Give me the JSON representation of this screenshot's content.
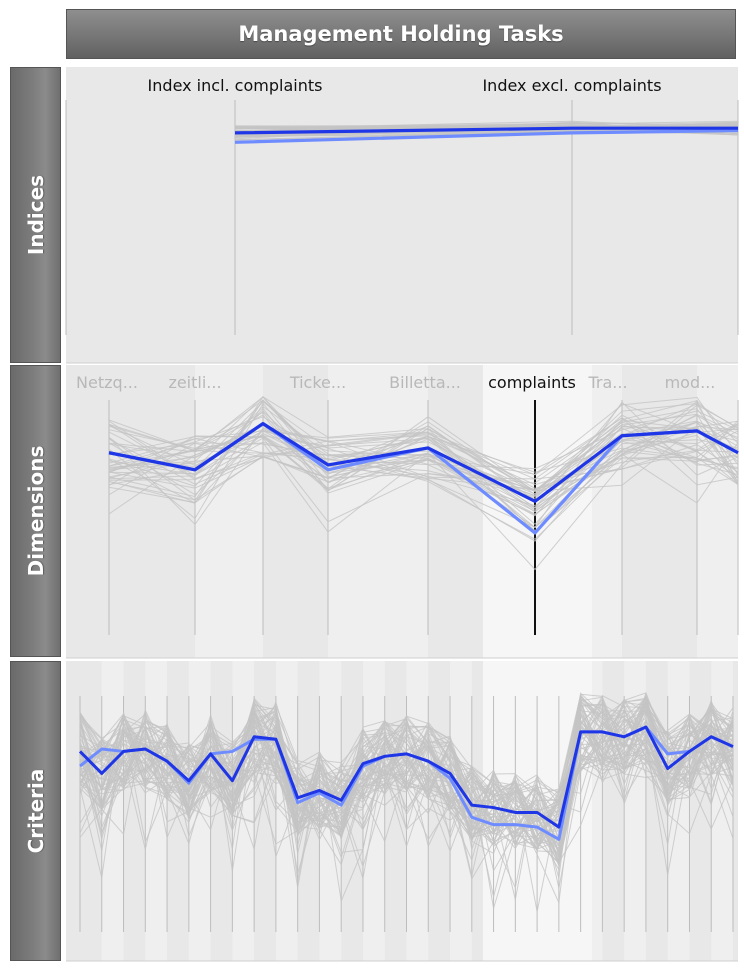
{
  "header": {
    "title": "Management Holding Tasks"
  },
  "panels": {
    "indices": "Indices",
    "dimensions": "Dimensions",
    "criteria": "Criteria"
  },
  "colors": {
    "highlight_dark": "#1f36e6",
    "highlight_light": "#6e8cff",
    "background_lines": "#c4c4c4",
    "panel_bg": "#e8e8e8",
    "selected_column": "#f6f6f6"
  },
  "chart_data": [
    {
      "type": "line",
      "title": "Indices",
      "axes": [
        "",
        "Index incl. complaints",
        "Index excl. complaints",
        ""
      ],
      "ylim": [
        0,
        100
      ],
      "series": [
        {
          "values": [
            null,
            86,
            88,
            88
          ]
        },
        {
          "values": [
            null,
            82,
            86,
            87
          ]
        }
      ]
    },
    {
      "type": "line",
      "title": "Dimensions",
      "axes": [
        "Netzq...",
        "zeitli...",
        "",
        "Ticke...",
        "Billetta...",
        "complaints",
        "Tra...",
        "mod...",
        ""
      ],
      "selected_axis": "complaints",
      "ylim": [
        0,
        100
      ],
      "series": [
        {
          "values": [
            75,
            68,
            87,
            70,
            77,
            55,
            82,
            84,
            75
          ]
        },
        {
          "values": [
            75,
            68,
            87,
            68,
            77,
            42,
            82,
            84,
            75
          ]
        }
      ]
    },
    {
      "type": "line",
      "title": "Criteria",
      "axis_count": 31,
      "ylim": [
        0,
        100
      ],
      "series": [
        {
          "values": [
            74,
            65,
            74,
            75,
            70,
            62,
            73,
            62,
            80,
            79,
            55,
            58,
            54,
            69,
            72,
            73,
            70,
            65,
            52,
            51,
            49,
            49,
            43,
            82,
            82,
            80,
            84,
            67,
            74,
            80,
            76
          ]
        },
        {
          "values": [
            68,
            75,
            74,
            75,
            70,
            61,
            73,
            74,
            79,
            79,
            53,
            57,
            52,
            68,
            72,
            73,
            70,
            63,
            47,
            44,
            44,
            43,
            38,
            82,
            82,
            80,
            84,
            73,
            74,
            80,
            76
          ]
        }
      ]
    }
  ]
}
